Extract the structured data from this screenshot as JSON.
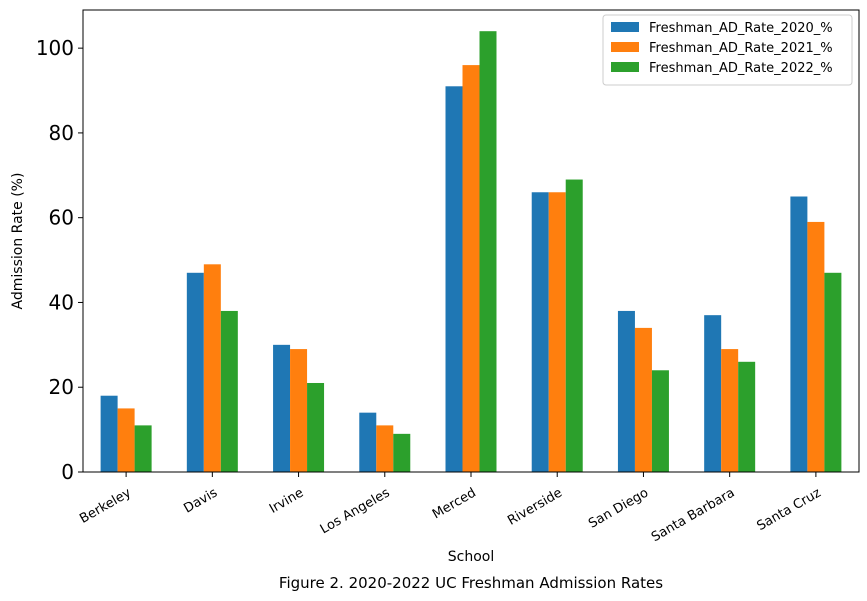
{
  "chart_data": {
    "type": "bar",
    "title": "",
    "caption": "Figure 2. 2020-2022 UC Freshman Admission Rates",
    "xlabel": "School",
    "ylabel": "Admission Rate (%)",
    "ylim": [
      0,
      109
    ],
    "yticks": [
      0,
      20,
      40,
      60,
      80,
      100
    ],
    "grid": false,
    "legend_position": "top-right",
    "categories": [
      "Berkeley",
      "Davis",
      "Irvine",
      "Los Angeles",
      "Merced",
      "Riverside",
      "San Diego",
      "Santa Barbara",
      "Santa Cruz"
    ],
    "series": [
      {
        "name": "Freshman_AD_Rate_2020_%",
        "color": "#1f77b4",
        "values": [
          18,
          47,
          30,
          14,
          91,
          66,
          38,
          37,
          65
        ]
      },
      {
        "name": "Freshman_AD_Rate_2021_%",
        "color": "#ff7f0e",
        "values": [
          15,
          49,
          29,
          11,
          96,
          66,
          34,
          29,
          59
        ]
      },
      {
        "name": "Freshman_AD_Rate_2022_%",
        "color": "#2ca02c",
        "values": [
          11,
          38,
          21,
          9,
          104,
          69,
          24,
          26,
          47
        ]
      }
    ]
  }
}
